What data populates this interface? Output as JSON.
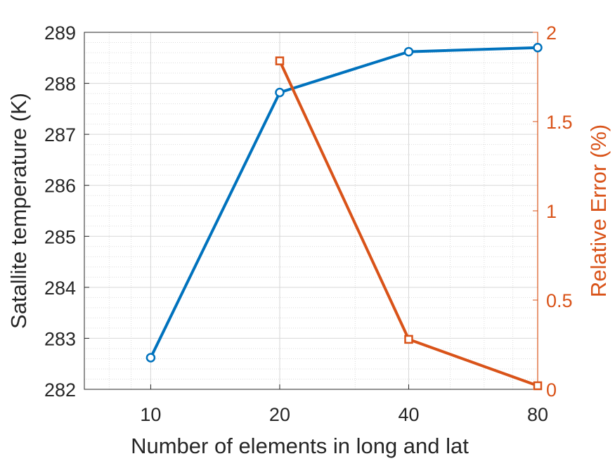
{
  "chart_data": {
    "type": "line",
    "xlabel": "Number of elements in long and lat",
    "ylabel_left": "Satallite temperature (K)",
    "ylabel_right": "Relative Error (%)",
    "x_scale": "log",
    "xlim": [
      7,
      80
    ],
    "x_ticks": [
      10,
      20,
      40,
      80
    ],
    "x_tick_labels": [
      "10",
      "20",
      "40",
      "80"
    ],
    "ylim_left": [
      282,
      289
    ],
    "y_ticks_left": [
      282,
      283,
      284,
      285,
      286,
      287,
      288,
      289
    ],
    "y_tick_labels_left": [
      "282",
      "283",
      "284",
      "285",
      "286",
      "287",
      "288",
      "289"
    ],
    "ylim_right": [
      0,
      2
    ],
    "y_ticks_right": [
      0,
      0.5,
      1,
      1.5,
      2
    ],
    "y_tick_labels_right": [
      "0",
      "0.5",
      "1",
      "1.5",
      "2"
    ],
    "grid": true,
    "minor_grid": true,
    "series": [
      {
        "axis": "left",
        "marker": "circle",
        "color": "#0072BD",
        "x": [
          10,
          20,
          40,
          80
        ],
        "values": [
          282.62,
          287.82,
          288.62,
          288.7
        ]
      },
      {
        "axis": "right",
        "marker": "square",
        "color": "#D95319",
        "x": [
          20,
          40,
          80
        ],
        "values": [
          1.84,
          0.28,
          0.02
        ]
      }
    ]
  }
}
